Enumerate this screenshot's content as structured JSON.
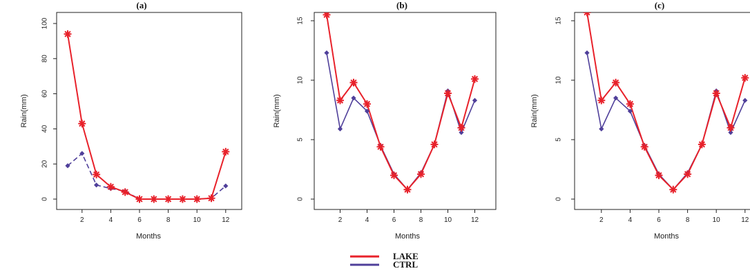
{
  "chart_data": [
    {
      "type": "line",
      "title": "(a)",
      "xlabel": "Months",
      "ylabel": "Rain(mm)",
      "x": [
        1,
        2,
        3,
        4,
        5,
        6,
        7,
        8,
        9,
        10,
        11,
        12
      ],
      "xticks": [
        "2",
        "4",
        "6",
        "8",
        "10",
        "12"
      ],
      "yticks": [
        "0",
        "20",
        "40",
        "60",
        "80",
        "100"
      ],
      "ylim": [
        0,
        100
      ],
      "series": [
        {
          "name": "LAKE",
          "color": "#e8212a",
          "style": "solid",
          "marker": "asterisk",
          "values": [
            94,
            43,
            14,
            7,
            4,
            0,
            0,
            0,
            0,
            0,
            0.5,
            27
          ]
        },
        {
          "name": "CTRL",
          "color": "#4f3f9a",
          "style": "dashed",
          "marker": "diamond",
          "values": [
            19,
            26,
            8,
            6,
            4.5,
            0,
            0,
            0,
            0,
            0,
            0.5,
            7.5
          ]
        }
      ]
    },
    {
      "type": "line",
      "title": "(b)",
      "xlabel": "Months",
      "ylabel": "Rain(mm)",
      "x": [
        1,
        2,
        3,
        4,
        5,
        6,
        7,
        8,
        9,
        10,
        11,
        12
      ],
      "xticks": [
        "2",
        "4",
        "6",
        "8",
        "10",
        "12"
      ],
      "yticks": [
        "0",
        "5",
        "10",
        "15"
      ],
      "ylim": [
        0,
        16
      ],
      "series": [
        {
          "name": "LAKE",
          "color": "#e8212a",
          "style": "solid",
          "marker": "asterisk",
          "values": [
            15.5,
            8.3,
            9.8,
            8.0,
            4.4,
            2.0,
            0.8,
            2.1,
            4.6,
            8.9,
            6.0,
            10.1
          ]
        },
        {
          "name": "CTRL",
          "color": "#4f3f9a",
          "style": "solid",
          "marker": "diamond",
          "values": [
            12.3,
            5.9,
            8.5,
            7.4,
            4.5,
            2.1,
            0.8,
            2.2,
            4.6,
            9.1,
            5.6,
            8.3
          ]
        }
      ]
    },
    {
      "type": "line",
      "title": "(c)",
      "xlabel": "Months",
      "ylabel": "Rain(mm)",
      "x": [
        1,
        2,
        3,
        4,
        5,
        6,
        7,
        8,
        9,
        10,
        11,
        12
      ],
      "xticks": [
        "2",
        "4",
        "6",
        "8",
        "10",
        "12"
      ],
      "yticks": [
        "0",
        "5",
        "10",
        "15"
      ],
      "ylim": [
        0,
        16
      ],
      "series": [
        {
          "name": "LAKE",
          "color": "#e8212a",
          "style": "solid",
          "marker": "asterisk",
          "values": [
            15.7,
            8.3,
            9.8,
            8.0,
            4.4,
            2.0,
            0.8,
            2.1,
            4.6,
            8.9,
            6.0,
            10.2
          ]
        },
        {
          "name": "CTRL",
          "color": "#4f3f9a",
          "style": "solid",
          "marker": "diamond",
          "values": [
            12.3,
            5.9,
            8.5,
            7.4,
            4.5,
            2.1,
            0.8,
            2.2,
            4.6,
            9.1,
            5.6,
            8.3
          ]
        }
      ]
    }
  ],
  "legend": {
    "placement": "bottom-center",
    "entries": [
      {
        "label": "LAKE",
        "color": "#e8212a"
      },
      {
        "label": "CTRL",
        "color": "#4f3f9a"
      }
    ]
  }
}
